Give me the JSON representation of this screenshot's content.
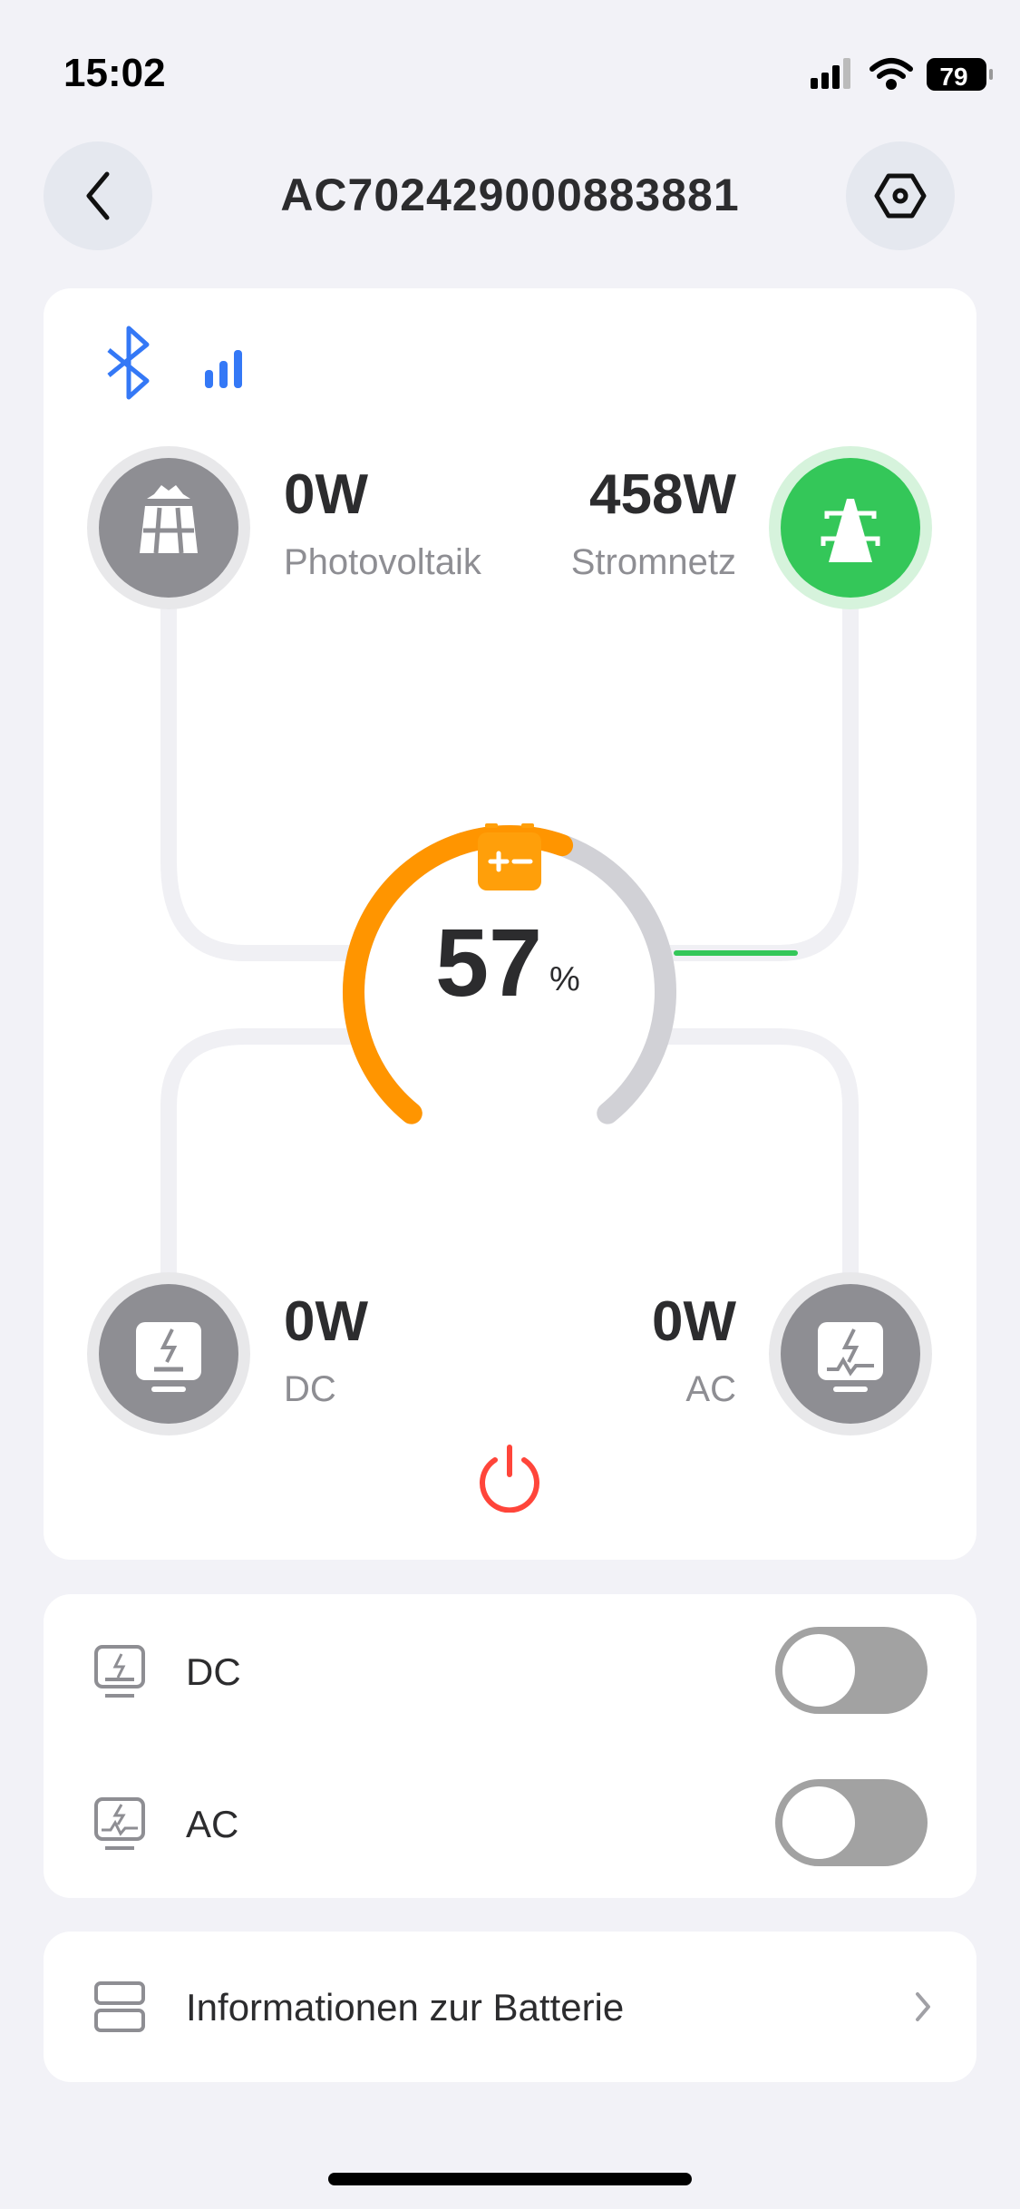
{
  "status_bar": {
    "time": "15:02",
    "battery": "79"
  },
  "header": {
    "title": "AC702429000883881"
  },
  "flow": {
    "pv": {
      "value": "0W",
      "label": "Photovoltaik"
    },
    "grid": {
      "value": "458W",
      "label": "Stromnetz"
    },
    "battery": {
      "percent": 57,
      "percent_text": "57",
      "unit": "%"
    },
    "dc": {
      "value": "0W",
      "label": "DC"
    },
    "ac": {
      "value": "0W",
      "label": "AC"
    }
  },
  "outputs": [
    {
      "label": "DC",
      "on": false
    },
    {
      "label": "AC",
      "on": false
    }
  ],
  "battery_info": {
    "label": "Informationen zur Batterie"
  },
  "colors": {
    "accent_orange": "#ff9500",
    "grid_green": "#34c759",
    "bluetooth_blue": "#3478f6",
    "power_red": "#ff453a",
    "inactive_gray": "#8e8e93"
  }
}
